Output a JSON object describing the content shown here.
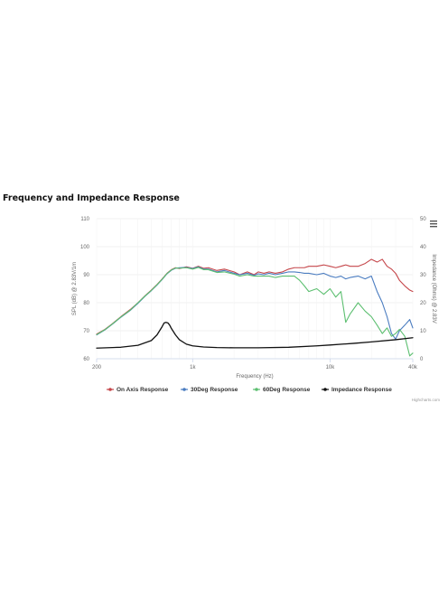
{
  "title": "Frequency and Impedance Response",
  "credits": "Highcharts.com",
  "menu_icon": "hamburger-icon",
  "chart_data": {
    "type": "line",
    "title": "Frequency and Impedance Response",
    "xlabel": "Frequency (Hz)",
    "x_scale": "log",
    "xlim": [
      200,
      40000
    ],
    "x_ticks": [
      200,
      1000,
      10000,
      40000
    ],
    "x_tick_labels": [
      "200",
      "1k",
      "10k",
      "40k"
    ],
    "yaxes": [
      {
        "id": "spl",
        "label": "SPL (dB) @ 2.83V/1m",
        "lim": [
          60,
          110
        ],
        "ticks": [
          60,
          70,
          80,
          90,
          100,
          110
        ],
        "position": "left"
      },
      {
        "id": "imp",
        "label": "Impedance (Ohms) @ 2.83V",
        "lim": [
          0,
          50
        ],
        "ticks": [
          0,
          10,
          20,
          30,
          40,
          50
        ],
        "position": "right"
      }
    ],
    "grid": true,
    "legend_position": "bottom",
    "series": [
      {
        "name": "On Axis Response",
        "color": "#c5464a",
        "axis": "spl",
        "x": [
          200,
          230,
          260,
          300,
          350,
          400,
          450,
          500,
          550,
          600,
          650,
          700,
          750,
          800,
          900,
          1000,
          1100,
          1200,
          1300,
          1500,
          1700,
          2000,
          2200,
          2500,
          2800,
          3000,
          3300,
          3600,
          4000,
          4500,
          5000,
          5500,
          6000,
          6500,
          7000,
          8000,
          9000,
          10000,
          11000,
          12000,
          13000,
          14000,
          16000,
          18000,
          20000,
          22000,
          24000,
          26000,
          28000,
          30000,
          32000,
          35000,
          38000,
          40000
        ],
        "y": [
          68.8,
          70.5,
          72.5,
          75,
          77.5,
          80,
          82.5,
          84.5,
          86.5,
          88.5,
          90.5,
          91.8,
          92.5,
          92.2,
          92.8,
          92.3,
          93,
          92.3,
          92.5,
          91.5,
          92,
          91,
          90,
          91,
          90,
          91,
          90.5,
          91,
          90.5,
          91,
          92,
          92.5,
          92.5,
          92.5,
          93,
          93,
          93.5,
          93,
          92.5,
          93,
          93.5,
          93,
          93,
          94,
          95.5,
          94.5,
          95.5,
          93,
          92,
          90.5,
          88,
          86,
          84.5,
          84
        ]
      },
      {
        "name": "30Deg Response",
        "color": "#4a7cc0",
        "axis": "spl",
        "x": [
          200,
          230,
          260,
          300,
          350,
          400,
          450,
          500,
          550,
          600,
          650,
          700,
          750,
          800,
          900,
          1000,
          1100,
          1200,
          1300,
          1500,
          1700,
          2000,
          2200,
          2500,
          2800,
          3000,
          3300,
          3600,
          4000,
          4500,
          5000,
          5500,
          6000,
          6500,
          7000,
          8000,
          9000,
          10000,
          11000,
          12000,
          13000,
          14000,
          16000,
          18000,
          20000,
          22000,
          24000,
          26000,
          28000,
          30000,
          32000,
          35000,
          38000,
          40000
        ],
        "y": [
          68.5,
          70.3,
          72.3,
          74.8,
          77.2,
          79.8,
          82.3,
          84.3,
          86.3,
          88.3,
          90.3,
          91.6,
          92.3,
          92.5,
          92.6,
          92.2,
          92.8,
          92,
          92,
          91,
          91.5,
          90.5,
          90,
          90.5,
          89.8,
          90.3,
          90,
          90.5,
          90,
          90.5,
          91,
          91,
          90.8,
          90.5,
          90.5,
          90,
          90.5,
          89.5,
          89,
          89.5,
          88.5,
          89,
          89.5,
          88.5,
          89.5,
          84,
          80,
          75,
          69,
          67,
          70,
          72,
          74,
          71
        ]
      },
      {
        "name": "60Deg Response",
        "color": "#5cbf70",
        "axis": "spl",
        "x": [
          200,
          230,
          260,
          300,
          350,
          400,
          450,
          500,
          550,
          600,
          650,
          700,
          750,
          800,
          900,
          1000,
          1100,
          1200,
          1300,
          1500,
          1700,
          2000,
          2200,
          2500,
          2800,
          3000,
          3300,
          3600,
          4000,
          4500,
          5000,
          5500,
          6000,
          6500,
          7000,
          8000,
          9000,
          10000,
          11000,
          12000,
          13000,
          14000,
          16000,
          18000,
          20000,
          22000,
          24000,
          26000,
          28000,
          30000,
          32000,
          35000,
          38000,
          40000
        ],
        "y": [
          68.6,
          70.4,
          72.4,
          74.9,
          77.3,
          80,
          82.4,
          84.4,
          86.4,
          88.4,
          90.4,
          91.7,
          92.4,
          92.3,
          92.5,
          92,
          92.6,
          91.8,
          91.8,
          90.8,
          91,
          90.2,
          89.5,
          90,
          89.5,
          89.5,
          89.5,
          89.5,
          89,
          89.5,
          89.5,
          89.5,
          88,
          86,
          84,
          85,
          83,
          85,
          82,
          84,
          73,
          76,
          80,
          77,
          75,
          72,
          69,
          71,
          68,
          69,
          70.5,
          68,
          61,
          62
        ]
      },
      {
        "name": "Impedance Response",
        "color": "#111111",
        "axis": "imp",
        "x": [
          200,
          300,
          400,
          500,
          550,
          600,
          620,
          640,
          660,
          680,
          700,
          750,
          800,
          900,
          1000,
          1200,
          1500,
          2000,
          3000,
          5000,
          8000,
          10000,
          15000,
          20000,
          30000,
          40000
        ],
        "y": [
          3.8,
          4.1,
          4.8,
          6.5,
          8.5,
          11.5,
          12.8,
          13,
          12.8,
          12,
          10.8,
          8.5,
          6.8,
          5.2,
          4.6,
          4.2,
          4,
          3.9,
          3.9,
          4.1,
          4.6,
          4.9,
          5.5,
          6,
          6.8,
          7.5
        ]
      }
    ]
  }
}
